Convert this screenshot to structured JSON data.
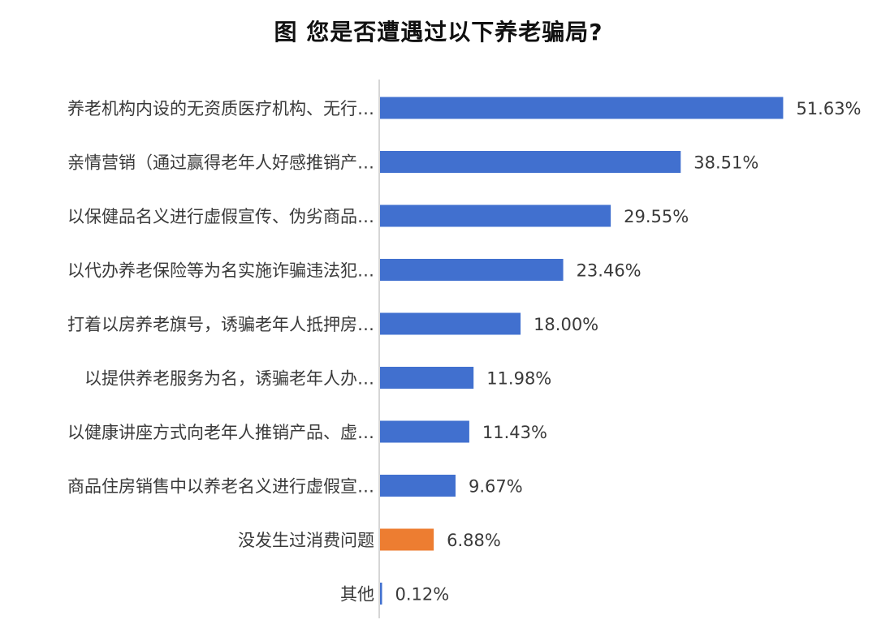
{
  "chart_data": {
    "type": "bar",
    "orientation": "horizontal",
    "title": "图  您是否遭遇过以下养老骗局?",
    "categories": [
      "养老机构内设的无资质医疗机构、无行…",
      "亲情营销（通过赢得老年人好感推销产…",
      "以保健品名义进行虚假宣传、伪劣商品…",
      "以代办养老保险等为名实施诈骗违法犯…",
      "打着以房养老旗号，诱骗老年人抵押房…",
      "以提供养老服务为名，诱骗老年人办…",
      "以健康讲座方式向老年人推销产品、虚…",
      "商品住房销售中以养老名义进行虚假宣…",
      "没发生过消费问题",
      "其他"
    ],
    "values": [
      51.63,
      38.51,
      29.55,
      23.46,
      18.0,
      11.98,
      11.43,
      9.67,
      6.88,
      0.12
    ],
    "value_labels": [
      "51.63%",
      "38.51%",
      "29.55%",
      "23.46%",
      "18.00%",
      "11.98%",
      "11.43%",
      "9.67%",
      "6.88%",
      "0.12%"
    ],
    "unit": "%",
    "xlim": [
      0,
      52
    ],
    "grid": false,
    "legend": "none",
    "colors": {
      "default": "#4170cf",
      "highlight": "#ed7d31",
      "axis": "#c9c9c9",
      "label": "#3a3a3a"
    },
    "highlight_index": 8
  }
}
